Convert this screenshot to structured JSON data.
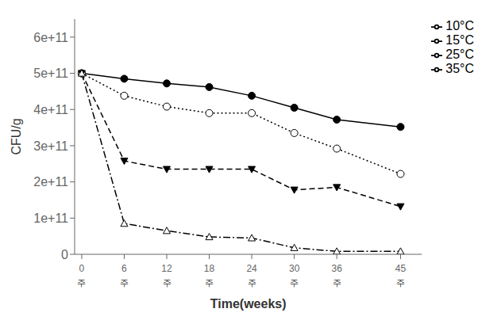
{
  "chart_data": {
    "type": "line",
    "x": [
      0,
      6,
      12,
      18,
      24,
      30,
      36,
      45
    ],
    "series": [
      {
        "name": "10°C",
        "color": "black",
        "line_style": "solid",
        "marker": "circle",
        "values": [
          500000000000.0,
          485000000000.0,
          472000000000.0,
          462000000000.0,
          438000000000.0,
          405000000000.0,
          372000000000.0,
          352000000000.0
        ]
      },
      {
        "name": "15°C",
        "color": "black",
        "line_style": "dotted",
        "marker": "open_circle",
        "values": [
          500000000000.0,
          438000000000.0,
          408000000000.0,
          390000000000.0,
          390000000000.0,
          335000000000.0,
          292000000000.0,
          222000000000.0
        ]
      },
      {
        "name": "25°C",
        "color": "black",
        "line_style": "dashed",
        "marker": "triangle_down",
        "values": [
          500000000000.0,
          258000000000.0,
          235000000000.0,
          235000000000.0,
          235000000000.0,
          178000000000.0,
          185000000000.0,
          132000000000.0
        ]
      },
      {
        "name": "35°C",
        "color": "black",
        "line_style": "dashdot",
        "marker": "open_triangle_up",
        "values": [
          500000000000.0,
          85000000000.0,
          65000000000.0,
          48000000000.0,
          45000000000.0,
          18000000000.0,
          8000000000.0,
          8000000000.0
        ]
      }
    ],
    "x_label": "Time(weeks)",
    "y_label": "CFU/g",
    "xlim": [
      -1,
      48
    ],
    "ylim": [
      0,
      650000000000.0
    ],
    "xticks": [
      0,
      6,
      12,
      18,
      24,
      30,
      36,
      45
    ],
    "yticks": [
      0,
      {
        "value": 100000000000.0,
        "label": "1e+11"
      },
      {
        "value": 200000000000.0,
        "label": "2e+11"
      },
      {
        "value": 300000000000.0,
        "label": "3e+11"
      },
      {
        "value": 400000000000.0,
        "label": "4e+11"
      },
      {
        "value": 500000000000.0,
        "label": "5e+11"
      },
      {
        "value": 600000000000.0,
        "label": "6e+11"
      }
    ],
    "annotations": [
      {
        "x": 0,
        "text": "주"
      },
      {
        "x": 6,
        "text": "주"
      },
      {
        "x": 12,
        "text": "주"
      },
      {
        "x": 18,
        "text": "주"
      },
      {
        "x": 24,
        "text": "주"
      },
      {
        "x": 30,
        "text": "주"
      },
      {
        "x": 36,
        "text": "주"
      },
      {
        "x": 45,
        "text": "주"
      }
    ],
    "legend": "upper right",
    "grid": false
  }
}
